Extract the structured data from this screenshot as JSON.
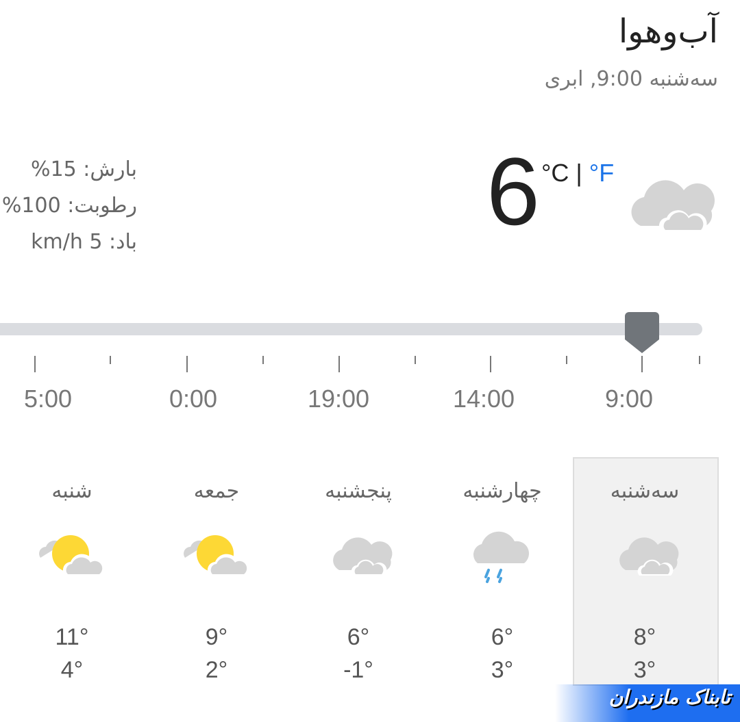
{
  "header": {
    "title": "آب‌وهوا",
    "subtitle": "سه‌شنبه 9:00, ابری"
  },
  "current": {
    "temperature": "6",
    "unit_c": "°C",
    "separator": "|",
    "unit_f": "°F",
    "icon": "cloudy-icon",
    "precipitation": "بارش: 15%",
    "humidity": "رطوبت: 100%",
    "wind": "باد: 5 km/h"
  },
  "timeline": {
    "labels": [
      "5:00",
      "0:00",
      "19:00",
      "14:00",
      "9:00"
    ],
    "selected": "9:00"
  },
  "days": [
    {
      "name": "سه‌شنبه",
      "icon": "cloudy",
      "high": "8°",
      "low": "3°",
      "selected": true
    },
    {
      "name": "چهارشنبه",
      "icon": "rain",
      "high": "6°",
      "low": "3°"
    },
    {
      "name": "پنجشنبه",
      "icon": "cloudy",
      "high": "6°",
      "low": "-1°"
    },
    {
      "name": "جمعه",
      "icon": "partly-sunny",
      "high": "9°",
      "low": "2°"
    },
    {
      "name": "شنبه",
      "icon": "partly-sunny",
      "high": "11°",
      "low": "4°"
    }
  ],
  "watermark": "تابناک مازندران",
  "colors": {
    "accent": "#1a73e8",
    "handle": "#70757a",
    "track": "#dadce0"
  }
}
